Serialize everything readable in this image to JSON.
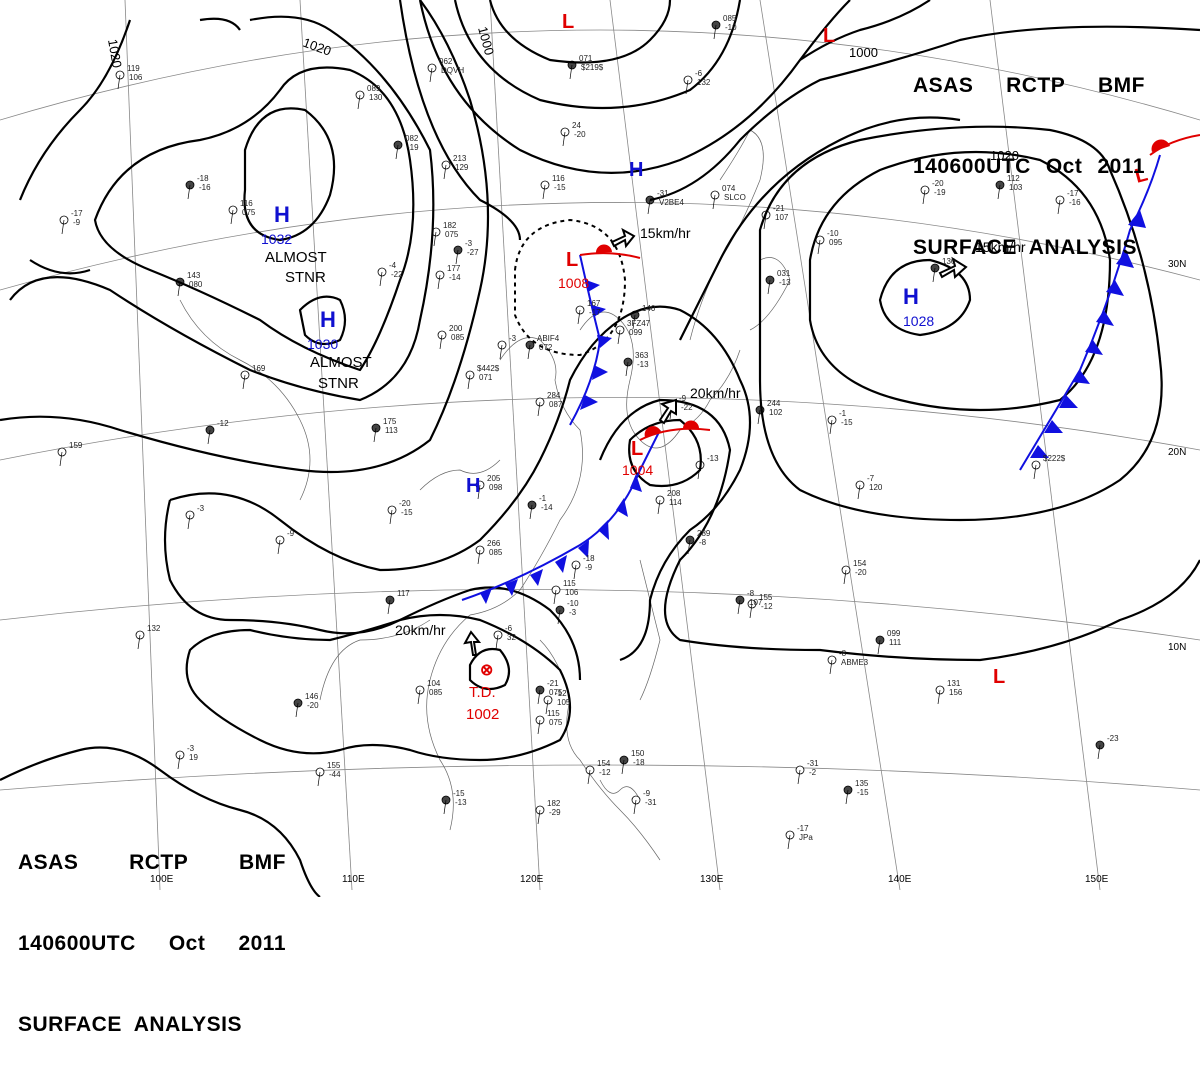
{
  "header_top": {
    "line1": [
      "ASAS",
      "RCTP",
      "BMF"
    ],
    "line2": [
      "140600UTC",
      "Oct",
      "2011"
    ],
    "line3": "SURFACE  ANALYSIS"
  },
  "header_bottom": {
    "line1": [
      "ASAS",
      "RCTP",
      "BMF"
    ],
    "line2": [
      "140600UTC",
      "Oct",
      "2011"
    ],
    "line3": "SURFACE  ANALYSIS"
  },
  "colors": {
    "high": "#1010d0",
    "low": "#e00000",
    "cold_front": "#1010e0",
    "warm_front": "#e00000",
    "isobar": "#000000",
    "grid": "#777777"
  },
  "isobar_labels": [
    "1020",
    "1020",
    "1000",
    "1000",
    "1020"
  ],
  "lon_labels": [
    "100E",
    "110E",
    "120E",
    "130E",
    "140E",
    "150E"
  ],
  "lat_labels": [
    "30N",
    "20N",
    "10N"
  ],
  "systems": [
    {
      "type": "H",
      "pressure": "1032"
    },
    {
      "type": "H",
      "pressure": "1030"
    },
    {
      "type": "H",
      "pressure": "1028"
    },
    {
      "type": "H",
      "pressure": ""
    },
    {
      "type": "H",
      "pressure": ""
    },
    {
      "type": "L",
      "pressure": "1008"
    },
    {
      "type": "L",
      "pressure": "1004"
    },
    {
      "type": "L",
      "pressure": ""
    },
    {
      "type": "L",
      "pressure": ""
    },
    {
      "type": "L",
      "pressure": ""
    },
    {
      "type": "L",
      "pressure": ""
    }
  ],
  "td": {
    "symbol": "⊗",
    "label": "T.D.",
    "pressure": "1002"
  },
  "annotations": [
    "ALMOST",
    "STNR",
    "ALMOST",
    "STNR"
  ],
  "motions": [
    "15km/hr",
    "15km/hr",
    "20km/hr",
    "20km/hr"
  ],
  "station_text": [
    "085",
    "-6",
    "24",
    "071",
    "062",
    "089",
    "082",
    "213",
    "116",
    "-31",
    "074",
    "-21",
    "031",
    "-10",
    "-20",
    "112",
    "-17",
    "116",
    "-18",
    "119",
    "-17",
    "143",
    "-4",
    "182",
    "-3",
    "200",
    "$442$",
    "ABIF4",
    "167",
    "3FZ47",
    "363",
    "284",
    "-9",
    "244",
    "-1",
    "205",
    "-1",
    "266",
    "-20",
    "175",
    "177",
    "208",
    "289",
    "-7",
    "154",
    "-8",
    "155",
    "-8",
    "099",
    "-18",
    "115",
    "-10",
    "-6",
    "104",
    "-21",
    "115",
    "-12",
    "146",
    "-3",
    "155",
    "-15",
    "182",
    "-9",
    "150",
    "154",
    "-31",
    "135",
    "-17",
    "131",
    "-23",
    "159",
    "-3",
    "117",
    "-9",
    "132",
    "-12",
    "169",
    "-3",
    "140",
    "-13",
    "$222$",
    "136",
    "-10",
    "132",
    "-20",
    "$219$",
    "DQVH",
    "130",
    "-19",
    "129",
    "-15",
    "V2BE4",
    "SLCO",
    "107",
    "-13",
    "095",
    "-19",
    "103",
    "-16",
    "075",
    "-16",
    "106",
    "-9",
    "080",
    "-22",
    "075",
    "-27",
    "085",
    "071",
    "072",
    "-17",
    "099",
    "-13",
    "087",
    "-22",
    "102",
    "-15",
    "098",
    "-14",
    "085",
    "-15",
    "113",
    "-14",
    "114",
    "-8",
    "120",
    "-20",
    "107",
    "-12",
    "ABME3",
    "111",
    "-9",
    "106",
    "-3",
    "32",
    "085",
    "075",
    "075",
    "105",
    "-20",
    "19",
    "-44",
    "-13",
    "-29",
    "-31",
    "-18",
    "-12",
    "-2",
    "-15",
    "JPa",
    "156"
  ]
}
